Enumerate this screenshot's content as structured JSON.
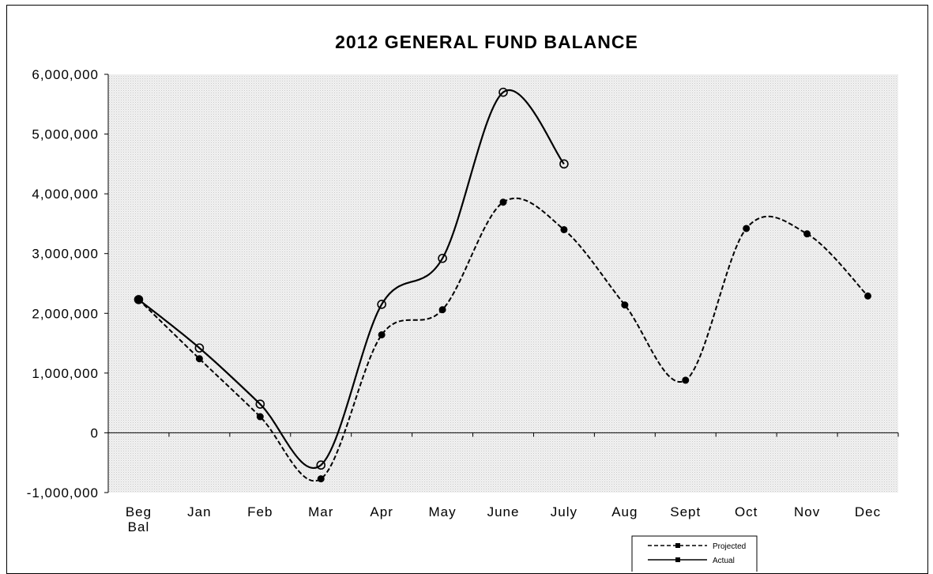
{
  "chart_data": {
    "type": "line",
    "title": "2012 GENERAL FUND BALANCE",
    "xlabel": "",
    "ylabel": "",
    "categories": [
      [
        "Beg",
        "Bal"
      ],
      [
        "Jan"
      ],
      [
        "Feb"
      ],
      [
        "Mar"
      ],
      [
        "Apr"
      ],
      [
        "May"
      ],
      [
        "June"
      ],
      [
        "July"
      ],
      [
        "Aug"
      ],
      [
        "Sept"
      ],
      [
        "Oct"
      ],
      [
        "Nov"
      ],
      [
        "Dec"
      ]
    ],
    "ylim": [
      -1000000,
      6000000
    ],
    "yticks": [
      {
        "value": 6000000,
        "label": "6,000,000"
      },
      {
        "value": 5000000,
        "label": "5,000,000"
      },
      {
        "value": 4000000,
        "label": "4,000,000"
      },
      {
        "value": 3000000,
        "label": "3,000,000"
      },
      {
        "value": 2000000,
        "label": "2,000,000"
      },
      {
        "value": 1000000,
        "label": "1,000,000"
      },
      {
        "value": 0,
        "label": "0"
      },
      {
        "value": -1000000,
        "label": "-1,000,000"
      }
    ],
    "grid": true,
    "legend_position": "bottom-right",
    "series": [
      {
        "name": "Projected",
        "style": "dashed",
        "marker": "filled-circle",
        "values": [
          2230000,
          1240000,
          270000,
          -770000,
          1640000,
          2060000,
          3860000,
          3400000,
          2140000,
          880000,
          3420000,
          3330000,
          2290000
        ]
      },
      {
        "name": "Actual",
        "style": "solid",
        "marker": "open-circle",
        "values": [
          2230000,
          1420000,
          480000,
          -540000,
          2150000,
          2920000,
          5700000,
          4500000,
          null,
          null,
          null,
          null,
          null
        ]
      }
    ]
  }
}
